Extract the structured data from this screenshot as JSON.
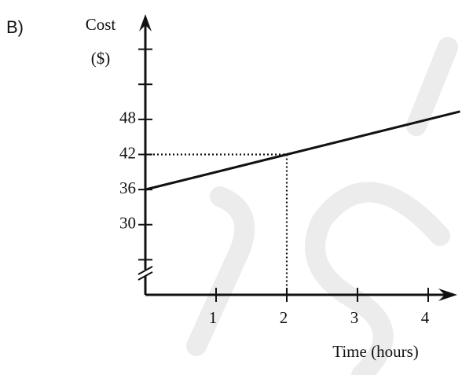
{
  "label": "B)",
  "chart_data": {
    "type": "line",
    "y_label": [
      "Cost",
      "($)"
    ],
    "x_label": "Time (hours)",
    "x": [
      0,
      2,
      4.45
    ],
    "series": [
      {
        "color": "#111111",
        "values": [
          36,
          42,
          49.35
        ]
      }
    ],
    "xlim": [
      0,
      4.45
    ],
    "xticks": [
      1,
      2,
      3,
      4
    ],
    "ylim": [
      18,
      66
    ],
    "yticks": [
      30,
      36,
      42,
      48
    ],
    "yminor": [
      24,
      54,
      60
    ],
    "axis_break": true,
    "guide": {
      "x": 2,
      "y": 42
    }
  }
}
